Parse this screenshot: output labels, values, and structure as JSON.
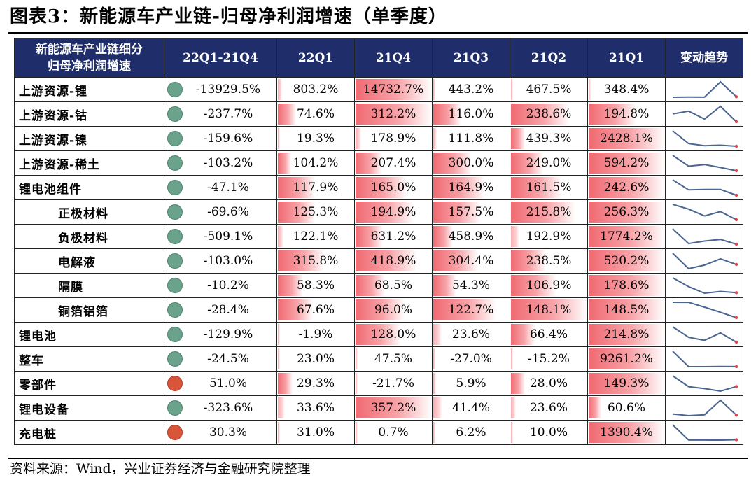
{
  "title": "图表3：新能源车产业链-归母净利润增速（单季度）",
  "source": "资料来源：Wind，兴业证券经济与金融研究院整理",
  "colors": {
    "header_bg": "#1f2d6b",
    "bar": "#f06a72",
    "dot_green": "#6aa28c",
    "dot_red": "#d8553a",
    "spark_line": "#4a6591",
    "spark_marker": "#d94848"
  },
  "header": {
    "name_line1": "新能源车产业链细分",
    "name_line2": "归母净利润增速",
    "change": "22Q1-21Q4",
    "periods": [
      "22Q1",
      "21Q4",
      "21Q3",
      "21Q2",
      "21Q1"
    ],
    "trend": "变动趋势"
  },
  "rows": [
    {
      "name": "上游资源-锂",
      "sub": false,
      "change": "-13929.5%",
      "dot": "green",
      "values": [
        "803.2%",
        "14732.7%",
        "443.2%",
        "467.5%",
        "348.4%"
      ],
      "nums": [
        803.2,
        14732.7,
        443.2,
        467.5,
        348.4
      ]
    },
    {
      "name": "上游资源-钴",
      "sub": false,
      "change": "-237.7%",
      "dot": "green",
      "values": [
        "74.6%",
        "312.2%",
        "116.0%",
        "238.6%",
        "194.8%"
      ],
      "nums": [
        74.6,
        312.2,
        116.0,
        238.6,
        194.8
      ]
    },
    {
      "name": "上游资源-镍",
      "sub": false,
      "change": "-159.6%",
      "dot": "green",
      "values": [
        "19.3%",
        "178.9%",
        "111.8%",
        "439.3%",
        "2428.1%"
      ],
      "nums": [
        19.3,
        178.9,
        111.8,
        439.3,
        2428.1
      ]
    },
    {
      "name": "上游资源-稀土",
      "sub": false,
      "change": "-103.2%",
      "dot": "green",
      "values": [
        "104.2%",
        "207.4%",
        "300.0%",
        "249.0%",
        "594.2%"
      ],
      "nums": [
        104.2,
        207.4,
        300.0,
        249.0,
        594.2
      ]
    },
    {
      "name": "锂电池组件",
      "sub": false,
      "change": "-47.1%",
      "dot": "green",
      "values": [
        "117.9%",
        "165.0%",
        "164.9%",
        "161.5%",
        "242.6%"
      ],
      "nums": [
        117.9,
        165.0,
        164.9,
        161.5,
        242.6
      ]
    },
    {
      "name": "正极材料",
      "sub": true,
      "change": "-69.6%",
      "dot": "green",
      "values": [
        "125.3%",
        "194.9%",
        "157.5%",
        "215.8%",
        "256.3%"
      ],
      "nums": [
        125.3,
        194.9,
        157.5,
        215.8,
        256.3
      ]
    },
    {
      "name": "负极材料",
      "sub": true,
      "change": "-509.1%",
      "dot": "green",
      "values": [
        "122.1%",
        "631.2%",
        "458.9%",
        "192.9%",
        "1774.2%"
      ],
      "nums": [
        122.1,
        631.2,
        458.9,
        192.9,
        1774.2
      ]
    },
    {
      "name": "电解液",
      "sub": true,
      "change": "-103.0%",
      "dot": "green",
      "values": [
        "315.8%",
        "418.9%",
        "304.4%",
        "238.5%",
        "520.2%"
      ],
      "nums": [
        315.8,
        418.9,
        304.4,
        238.5,
        520.2
      ]
    },
    {
      "name": "隔膜",
      "sub": true,
      "change": "-10.2%",
      "dot": "green",
      "values": [
        "58.3%",
        "68.5%",
        "54.3%",
        "106.9%",
        "178.6%"
      ],
      "nums": [
        58.3,
        68.5,
        54.3,
        106.9,
        178.6
      ]
    },
    {
      "name": "铜箔铝箔",
      "sub": true,
      "change": "-28.4%",
      "dot": "green",
      "values": [
        "67.6%",
        "96.0%",
        "122.7%",
        "148.1%",
        "148.5%"
      ],
      "nums": [
        67.6,
        96.0,
        122.7,
        148.1,
        148.5
      ]
    },
    {
      "name": "锂电池",
      "sub": false,
      "change": "-129.9%",
      "dot": "green",
      "values": [
        "-1.9%",
        "128.0%",
        "23.6%",
        "66.4%",
        "214.8%"
      ],
      "nums": [
        -1.9,
        128.0,
        23.6,
        66.4,
        214.8
      ]
    },
    {
      "name": "整车",
      "sub": false,
      "change": "-24.5%",
      "dot": "green",
      "values": [
        "23.0%",
        "47.5%",
        "-27.0%",
        "-15.2%",
        "9261.2%"
      ],
      "nums": [
        23.0,
        47.5,
        -27.0,
        -15.2,
        9261.2
      ]
    },
    {
      "name": "零部件",
      "sub": false,
      "change": "51.0%",
      "dot": "red",
      "values": [
        "29.3%",
        "-21.7%",
        "5.9%",
        "28.0%",
        "149.3%"
      ],
      "nums": [
        29.3,
        -21.7,
        5.9,
        28.0,
        149.3
      ]
    },
    {
      "name": "锂电设备",
      "sub": false,
      "change": "-323.6%",
      "dot": "green",
      "values": [
        "33.6%",
        "357.2%",
        "41.4%",
        "23.6%",
        "60.6%"
      ],
      "nums": [
        33.6,
        357.2,
        41.4,
        23.6,
        60.6
      ]
    },
    {
      "name": "充电桩",
      "sub": false,
      "change": "30.3%",
      "dot": "red",
      "values": [
        "31.0%",
        "0.7%",
        "6.2%",
        "10.0%",
        "1390.4%"
      ],
      "nums": [
        31.0,
        0.7,
        6.2,
        10.0,
        1390.4
      ]
    }
  ]
}
